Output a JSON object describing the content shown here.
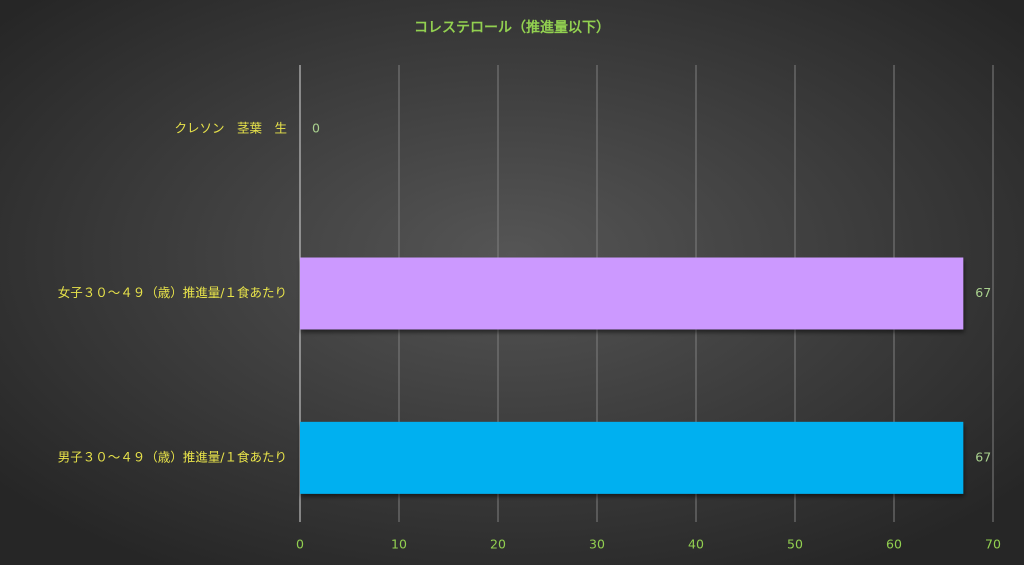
{
  "chart_data": {
    "type": "hbar",
    "title": "コレステロール（推進量以下）",
    "categories": [
      "クレソン　茎葉　生",
      "女子３０～４９（歳）推進量/１食あたり",
      "男子３０～４９（歳）推進量/１食あたり"
    ],
    "values": [
      0,
      67,
      67
    ],
    "colors": [
      null,
      "#cc99ff",
      "#00b0f0"
    ],
    "xlim": [
      0,
      70
    ],
    "xticks": [
      0,
      10,
      20,
      30,
      40,
      50,
      60,
      70
    ],
    "grid": true
  }
}
